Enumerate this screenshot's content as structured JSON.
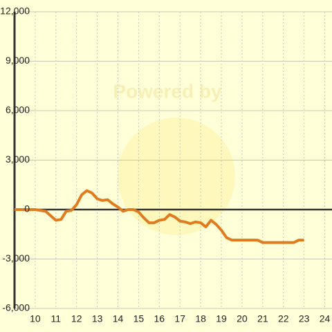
{
  "chart_data": {
    "type": "line",
    "watermark": "Powered by",
    "x": [
      9,
      10,
      10.5,
      11,
      11.25,
      11.5,
      11.75,
      12,
      12.25,
      12.5,
      12.75,
      13,
      13.25,
      13.5,
      13.75,
      14,
      14.25,
      14.5,
      14.75,
      15,
      15.25,
      15.5,
      15.75,
      16,
      16.25,
      16.5,
      16.75,
      17,
      17.25,
      17.5,
      17.75,
      18,
      18.25,
      18.5,
      18.75,
      19,
      19.25,
      19.5,
      19.75,
      20,
      20.25,
      20.5,
      20.75,
      21,
      21.25,
      21.5,
      21.75,
      22,
      22.25,
      22.5,
      22.75,
      23
    ],
    "series": [
      {
        "color": "#e07b20",
        "values": [
          0,
          0,
          -100,
          -650,
          -600,
          -100,
          -50,
          300,
          900,
          1150,
          1000,
          650,
          550,
          600,
          350,
          150,
          -100,
          0,
          0,
          -150,
          -500,
          -800,
          -800,
          -650,
          -600,
          -300,
          -450,
          -700,
          -750,
          -850,
          -750,
          -800,
          -1050,
          -650,
          -900,
          -1250,
          -1700,
          -1850,
          -1850,
          -1850,
          -1850,
          -1850,
          -1850,
          -2000,
          -2000,
          -2000,
          -2000,
          -2000,
          -2000,
          -2000,
          -1850,
          -1850
        ]
      }
    ],
    "xlim": [
      9,
      24.35
    ],
    "xticks": [
      10,
      11,
      12,
      13,
      14,
      15,
      16,
      17,
      18,
      19,
      20,
      21,
      22,
      23,
      24
    ],
    "ylim": [
      -6000,
      12000
    ],
    "yticks": [
      {
        "value": -6000,
        "label": "-6,000"
      },
      {
        "value": -3000,
        "label": "-3,000"
      },
      0,
      {
        "value": 3000,
        "label": "3,000"
      },
      {
        "value": 6000,
        "label": "6,000"
      },
      {
        "value": 9000,
        "label": "9,000"
      },
      {
        "value": 12000,
        "label": "12,000"
      }
    ],
    "grid": true
  }
}
